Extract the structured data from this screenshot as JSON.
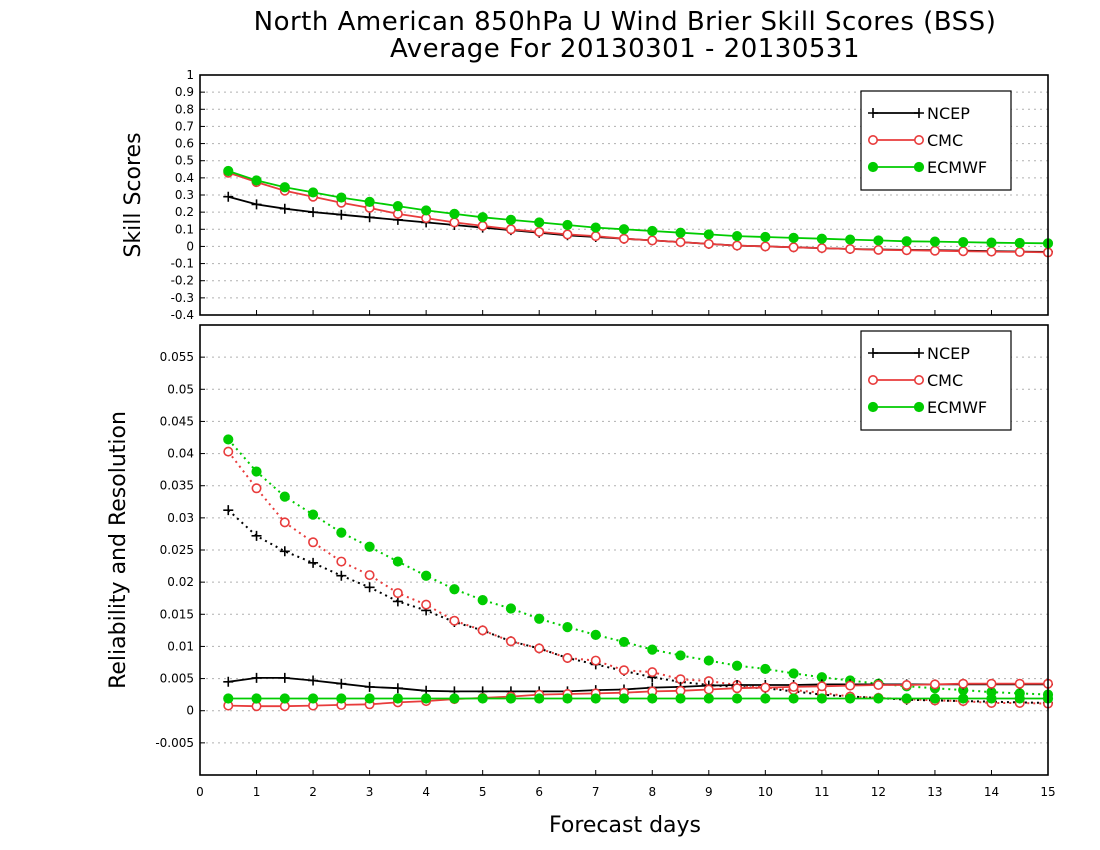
{
  "chart_data": {
    "title": "North American 850hPa U Wind Brier Skill Scores (BSS)",
    "subtitle": "Average For 20130301 - 20130531",
    "xlabel": "Forecast days",
    "xlim": [
      0,
      15
    ],
    "x_ticks": [
      "0",
      "1",
      "2",
      "3",
      "4",
      "5",
      "6",
      "7",
      "8",
      "9",
      "10",
      "11",
      "12",
      "13",
      "14",
      "15"
    ],
    "x": [
      0.5,
      1,
      1.5,
      2,
      2.5,
      3,
      3.5,
      4,
      4.5,
      5,
      5.5,
      6,
      6.5,
      7,
      7.5,
      8,
      8.5,
      9,
      9.5,
      10,
      10.5,
      11,
      11.5,
      12,
      12.5,
      13,
      13.5,
      14,
      14.5,
      15
    ],
    "colors": {
      "NCEP": "#000000",
      "CMC": "#e83c3c",
      "ECMWF": "#00cc00"
    },
    "panels": [
      {
        "type": "line",
        "ylabel": "Skill Scores",
        "ylim": [
          -0.4,
          1
        ],
        "y_ticks": [
          "1",
          "0.9",
          "0.8",
          "0.7",
          "0.6",
          "0.5",
          "0.4",
          "0.3",
          "0.2",
          "0.1",
          "0",
          "-0.1",
          "-0.2",
          "-0.3",
          "-0.4"
        ],
        "legend": [
          "NCEP",
          "CMC",
          "ECMWF"
        ],
        "legend_position": "top-right",
        "grid": true,
        "series": [
          {
            "name": "NCEP",
            "marker": "plus",
            "values": [
              0.29,
              0.245,
              0.22,
              0.2,
              0.185,
              0.17,
              0.155,
              0.14,
              0.125,
              0.11,
              0.095,
              0.08,
              0.065,
              0.055,
              0.045,
              0.035,
              0.025,
              0.015,
              0.005,
              0.0,
              -0.005,
              -0.01,
              -0.015,
              -0.018,
              -0.02,
              -0.022,
              -0.025,
              -0.028,
              -0.03,
              -0.032
            ]
          },
          {
            "name": "CMC",
            "marker": "circle-open",
            "values": [
              0.43,
              0.375,
              0.325,
              0.29,
              0.255,
              0.225,
              0.19,
              0.165,
              0.14,
              0.12,
              0.1,
              0.085,
              0.07,
              0.06,
              0.045,
              0.035,
              0.025,
              0.015,
              0.005,
              0.0,
              -0.005,
              -0.01,
              -0.015,
              -0.02,
              -0.022,
              -0.025,
              -0.028,
              -0.03,
              -0.032,
              -0.035
            ]
          },
          {
            "name": "ECMWF",
            "marker": "circle-filled",
            "values": [
              0.44,
              0.385,
              0.345,
              0.315,
              0.285,
              0.26,
              0.235,
              0.21,
              0.19,
              0.17,
              0.155,
              0.14,
              0.125,
              0.11,
              0.1,
              0.09,
              0.08,
              0.07,
              0.06,
              0.055,
              0.05,
              0.045,
              0.04,
              0.035,
              0.03,
              0.028,
              0.025,
              0.022,
              0.02,
              0.018
            ]
          }
        ]
      },
      {
        "type": "line",
        "ylabel": "Reliability and Resolution",
        "ylim": [
          -0.01,
          0.06
        ],
        "y_ticks": [
          "0.055",
          "0.05",
          "0.045",
          "0.04",
          "0.035",
          "0.03",
          "0.025",
          "0.02",
          "0.015",
          "0.01",
          "0.005",
          "0",
          "-0.005"
        ],
        "legend": [
          "NCEP",
          "CMC",
          "ECMWF"
        ],
        "legend_position": "top-right",
        "grid": true,
        "series": [
          {
            "name": "NCEP Resolution",
            "style": "dotted",
            "marker": "plus",
            "values": [
              0.0312,
              0.0272,
              0.0248,
              0.023,
              0.021,
              0.0192,
              0.017,
              0.0156,
              0.0138,
              0.0125,
              0.0108,
              0.0097,
              0.0082,
              0.0072,
              0.0062,
              0.0052,
              0.0045,
              0.004,
              0.0037,
              0.0035,
              0.003,
              0.0025,
              0.0022,
              0.002,
              0.0017,
              0.0016,
              0.0015,
              0.0014,
              0.0013,
              0.0012
            ]
          },
          {
            "name": "CMC Resolution",
            "style": "dotted",
            "marker": "circle-open",
            "values": [
              0.0403,
              0.0346,
              0.0293,
              0.0262,
              0.0232,
              0.0211,
              0.0183,
              0.0165,
              0.014,
              0.0125,
              0.0108,
              0.0097,
              0.0082,
              0.0078,
              0.0063,
              0.006,
              0.0049,
              0.0046,
              0.004,
              0.0036,
              0.0032,
              0.0028,
              0.0022,
              0.002,
              0.0018,
              0.0016,
              0.0015,
              0.0012,
              0.0012,
              0.0011
            ]
          },
          {
            "name": "ECMWF Resolution",
            "style": "dotted",
            "marker": "circle-filled",
            "values": [
              0.0422,
              0.0372,
              0.0333,
              0.0305,
              0.0277,
              0.0255,
              0.0232,
              0.021,
              0.0189,
              0.0172,
              0.0159,
              0.0143,
              0.013,
              0.0118,
              0.0107,
              0.0095,
              0.0086,
              0.0078,
              0.007,
              0.0065,
              0.0058,
              0.0052,
              0.0047,
              0.0042,
              0.0038,
              0.0035,
              0.0032,
              0.0029,
              0.0027,
              0.0025
            ]
          },
          {
            "name": "NCEP Reliability",
            "style": "solid",
            "marker": "plus",
            "values": [
              0.0045,
              0.0051,
              0.0051,
              0.0047,
              0.0042,
              0.0037,
              0.0035,
              0.0031,
              0.003,
              0.003,
              0.003,
              0.003,
              0.003,
              0.0032,
              0.0033,
              0.0036,
              0.0037,
              0.0039,
              0.004,
              0.004,
              0.004,
              0.0041,
              0.0041,
              0.0041,
              0.0041,
              0.0041,
              0.0041,
              0.0041,
              0.0041,
              0.0041
            ]
          },
          {
            "name": "CMC Reliability",
            "style": "solid",
            "marker": "circle-open",
            "values": [
              0.0008,
              0.0007,
              0.0007,
              0.0008,
              0.0009,
              0.001,
              0.0013,
              0.0015,
              0.0018,
              0.002,
              0.0022,
              0.0025,
              0.0026,
              0.0027,
              0.0028,
              0.003,
              0.0031,
              0.0033,
              0.0035,
              0.0036,
              0.0037,
              0.0038,
              0.0039,
              0.004,
              0.004,
              0.0041,
              0.0042,
              0.0042,
              0.0042,
              0.0042
            ]
          },
          {
            "name": "ECMWF Reliability",
            "style": "solid",
            "marker": "circle-filled",
            "values": [
              0.0019,
              0.0019,
              0.0019,
              0.0019,
              0.0019,
              0.0019,
              0.0019,
              0.0019,
              0.0019,
              0.0019,
              0.0019,
              0.0019,
              0.0019,
              0.0019,
              0.0019,
              0.0019,
              0.0019,
              0.0019,
              0.0019,
              0.0019,
              0.0019,
              0.0019,
              0.0019,
              0.0019,
              0.0019,
              0.0019,
              0.0019,
              0.0019,
              0.0019,
              0.0019
            ]
          }
        ]
      }
    ]
  }
}
